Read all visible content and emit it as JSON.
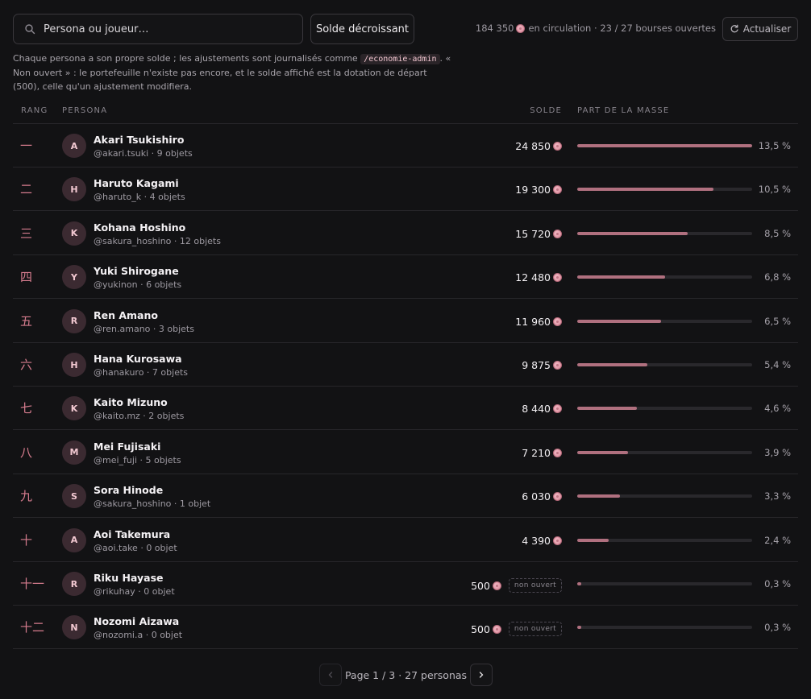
{
  "search": {
    "placeholder": "Persona ou joueur…"
  },
  "sort": {
    "label": "Solde décroissant"
  },
  "circulation": {
    "amount": "184 350",
    "text": "en circulation · 23 / 27 bourses ouvertes"
  },
  "refresh": {
    "label": "Actualiser"
  },
  "note": {
    "part1": "Chaque persona a son propre solde ; les ajustements sont journalisés comme ",
    "code": "/economie-admin",
    "part2": ". « Non ouvert » : le portefeuille n'existe pas encore, et le solde affiché est la dotation de départ (500), celle qu'un ajustement modifiera."
  },
  "table": {
    "headers": {
      "rank": "RANG",
      "persona": "PERSONA",
      "balance": "SOLDE",
      "share": "PART DE LA MASSE"
    },
    "rows": [
      {
        "rank": "一",
        "initial": "A",
        "name": "Akari Tsukishiro",
        "sub": "@akari.tsuki · 9 objets",
        "balance": "24 850",
        "share": 13.5,
        "pct": "13,5 %",
        "badge": ""
      },
      {
        "rank": "二",
        "initial": "H",
        "name": "Haruto Kagami",
        "sub": "@haruto_k · 4 objets",
        "balance": "19 300",
        "share": 10.5,
        "pct": "10,5 %",
        "badge": ""
      },
      {
        "rank": "三",
        "initial": "K",
        "name": "Kohana Hoshino",
        "sub": "@sakura_hoshino · 12 objets",
        "balance": "15 720",
        "share": 8.5,
        "pct": "8,5 %",
        "badge": ""
      },
      {
        "rank": "四",
        "initial": "Y",
        "name": "Yuki Shirogane",
        "sub": "@yukinon · 6 objets",
        "balance": "12 480",
        "share": 6.8,
        "pct": "6,8 %",
        "badge": ""
      },
      {
        "rank": "五",
        "initial": "R",
        "name": "Ren Amano",
        "sub": "@ren.amano · 3 objets",
        "balance": "11 960",
        "share": 6.5,
        "pct": "6,5 %",
        "badge": ""
      },
      {
        "rank": "六",
        "initial": "H",
        "name": "Hana Kurosawa",
        "sub": "@hanakuro · 7 objets",
        "balance": "9 875",
        "share": 5.4,
        "pct": "5,4 %",
        "badge": ""
      },
      {
        "rank": "七",
        "initial": "K",
        "name": "Kaito Mizuno",
        "sub": "@kaito.mz · 2 objets",
        "balance": "8 440",
        "share": 4.6,
        "pct": "4,6 %",
        "badge": ""
      },
      {
        "rank": "八",
        "initial": "M",
        "name": "Mei Fujisaki",
        "sub": "@mei_fuji · 5 objets",
        "balance": "7 210",
        "share": 3.9,
        "pct": "3,9 %",
        "badge": ""
      },
      {
        "rank": "九",
        "initial": "S",
        "name": "Sora Hinode",
        "sub": "@sakura_hoshino · 1 objet",
        "balance": "6 030",
        "share": 3.3,
        "pct": "3,3 %",
        "badge": ""
      },
      {
        "rank": "十",
        "initial": "A",
        "name": "Aoi Takemura",
        "sub": "@aoi.take · 0 objet",
        "balance": "4 390",
        "share": 2.4,
        "pct": "2,4 %",
        "badge": ""
      },
      {
        "rank": "十一",
        "initial": "R",
        "name": "Riku Hayase",
        "sub": "@rikuhay · 0 objet",
        "balance": "500",
        "share": 0.3,
        "pct": "0,3 %",
        "badge": "non ouvert"
      },
      {
        "rank": "十二",
        "initial": "N",
        "name": "Nozomi Aizawa",
        "sub": "@nozomi.a · 0 objet",
        "balance": "500",
        "share": 0.3,
        "pct": "0,3 %",
        "badge": "non ouvert"
      }
    ]
  },
  "pagination": {
    "info": "Page 1 / 3 · 27 personas"
  },
  "colors": {
    "accent": "#d67c8e",
    "bar_fill": "#b0707f",
    "background": "#121214"
  },
  "icons": {
    "search": "search-icon",
    "refresh": "refresh-icon",
    "coin": "coin-icon",
    "prev": "chevron-left-icon",
    "next": "chevron-right-icon"
  }
}
